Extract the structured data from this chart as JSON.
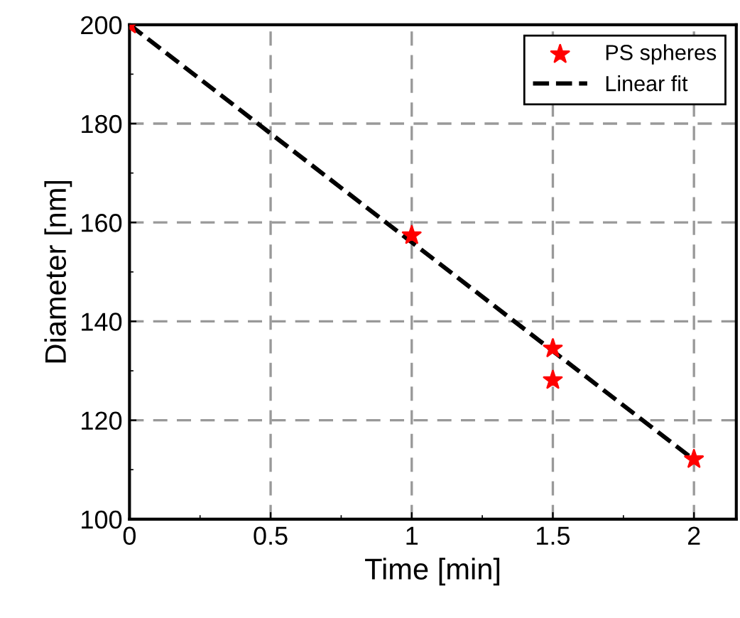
{
  "chart_data": {
    "type": "scatter",
    "xlabel": "Time [min]",
    "ylabel": "Diameter [nm]",
    "series": [
      {
        "name": "PS spheres",
        "color": "#ff0000",
        "marker": "star",
        "x": [
          0,
          1,
          1.5,
          1.5,
          2
        ],
        "values": [
          200,
          157.4,
          134.5,
          128.1,
          112.1
        ]
      },
      {
        "name": "Linear fit",
        "type": "line",
        "color": "#000000",
        "line_style": "dashed",
        "marker": "none",
        "x": [
          0,
          2
        ],
        "values": [
          200,
          112
        ]
      }
    ],
    "xlim": [
      0,
      2.15
    ],
    "ylim": [
      100,
      200
    ],
    "xticks": [
      0,
      0.5,
      1,
      1.5,
      2
    ],
    "yticks": [
      100,
      120,
      140,
      160,
      180,
      200
    ],
    "grid": true,
    "legend": "top right"
  }
}
